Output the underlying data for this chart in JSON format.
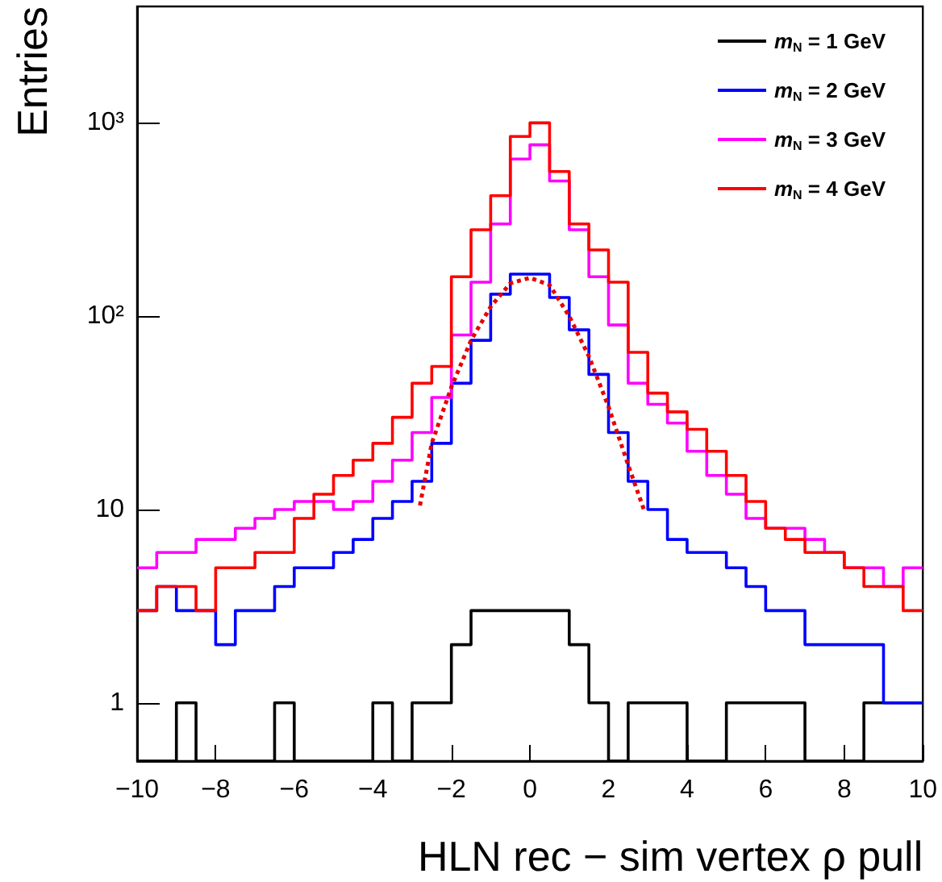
{
  "chart_data": {
    "type": "histogram",
    "xlabel": "HLN rec − sim vertex ρ pull",
    "ylabel": "Entries",
    "bins": [
      -10,
      -9.5,
      -9,
      -8.5,
      -8,
      -7.5,
      -7,
      -6.5,
      -6,
      -5.5,
      -5,
      -4.5,
      -4,
      -3.5,
      -3,
      -2.5,
      -2,
      -1.5,
      -1,
      -0.5,
      0,
      0.5,
      1,
      1.5,
      2,
      2.5,
      3,
      3.5,
      4,
      4.5,
      5,
      5.5,
      6,
      6.5,
      7,
      7.5,
      8,
      8.5,
      9,
      9.5,
      10
    ],
    "series": [
      {
        "name": "m$_{N}$ = 1 GeV",
        "color": "#000000",
        "values": [
          null,
          null,
          1,
          null,
          null,
          null,
          null,
          1,
          null,
          null,
          null,
          null,
          1,
          null,
          1,
          1,
          2,
          3,
          3,
          3,
          3,
          3,
          2,
          1,
          null,
          1,
          1,
          1,
          null,
          null,
          1,
          1,
          1,
          1,
          null,
          null,
          null,
          1,
          1,
          1
        ]
      },
      {
        "name": "m$_{N}$ = 2 GeV",
        "color": "#0000ff",
        "values": [
          3,
          4,
          3,
          3,
          2,
          3,
          3,
          4,
          5,
          5,
          6,
          7,
          9,
          11,
          14,
          22,
          45,
          75,
          130,
          165,
          165,
          125,
          85,
          50,
          25,
          14,
          10,
          7,
          6,
          6,
          5,
          4,
          3,
          3,
          2,
          2,
          2,
          2,
          1,
          1
        ]
      },
      {
        "name": "m$_{N}$ = 3 GeV",
        "color": "#ff00ff",
        "values": [
          5,
          6,
          6,
          7,
          7,
          8,
          9,
          10,
          11,
          11,
          10,
          11,
          14,
          18,
          25,
          38,
          80,
          150,
          300,
          650,
          770,
          500,
          280,
          160,
          90,
          45,
          35,
          28,
          20,
          15,
          12,
          9,
          8,
          8,
          7,
          6,
          5,
          5,
          4,
          5
        ]
      },
      {
        "name": "m$_{N}$ = 4 GeV",
        "color": "#ff0000",
        "values": [
          3,
          4,
          4,
          3,
          5,
          5,
          6,
          6,
          9,
          12,
          15,
          18,
          22,
          30,
          45,
          55,
          160,
          280,
          420,
          850,
          1000,
          560,
          300,
          220,
          150,
          65,
          40,
          32,
          26,
          20,
          15,
          11,
          8,
          7,
          6,
          6,
          5,
          4,
          4,
          3
        ]
      },
      {
        "type": "line",
        "color": "#e60000",
        "line_style": "dotted",
        "marker": "none",
        "x": [
          -2.8,
          -2.5,
          -2,
          -1.5,
          -1,
          -0.5,
          0,
          0.5,
          1,
          1.5,
          2,
          2.5,
          2.9
        ],
        "values": [
          10.5,
          22,
          43,
          75,
          112,
          148,
          158,
          145,
          100,
          62,
          34,
          17,
          10
        ]
      }
    ],
    "xlim": [
      -10,
      10
    ],
    "xticks": [
      -10,
      -8,
      -6,
      -4,
      -2,
      0,
      2,
      4,
      6,
      8,
      10
    ],
    "ylim": [
      0.5,
      4000
    ],
    "yticks": [
      1,
      10,
      {
        "value": 100,
        "label": "10²"
      },
      {
        "value": 1000,
        "label": "10³"
      }
    ],
    "log": "y",
    "grid": false,
    "legend": "top right"
  }
}
